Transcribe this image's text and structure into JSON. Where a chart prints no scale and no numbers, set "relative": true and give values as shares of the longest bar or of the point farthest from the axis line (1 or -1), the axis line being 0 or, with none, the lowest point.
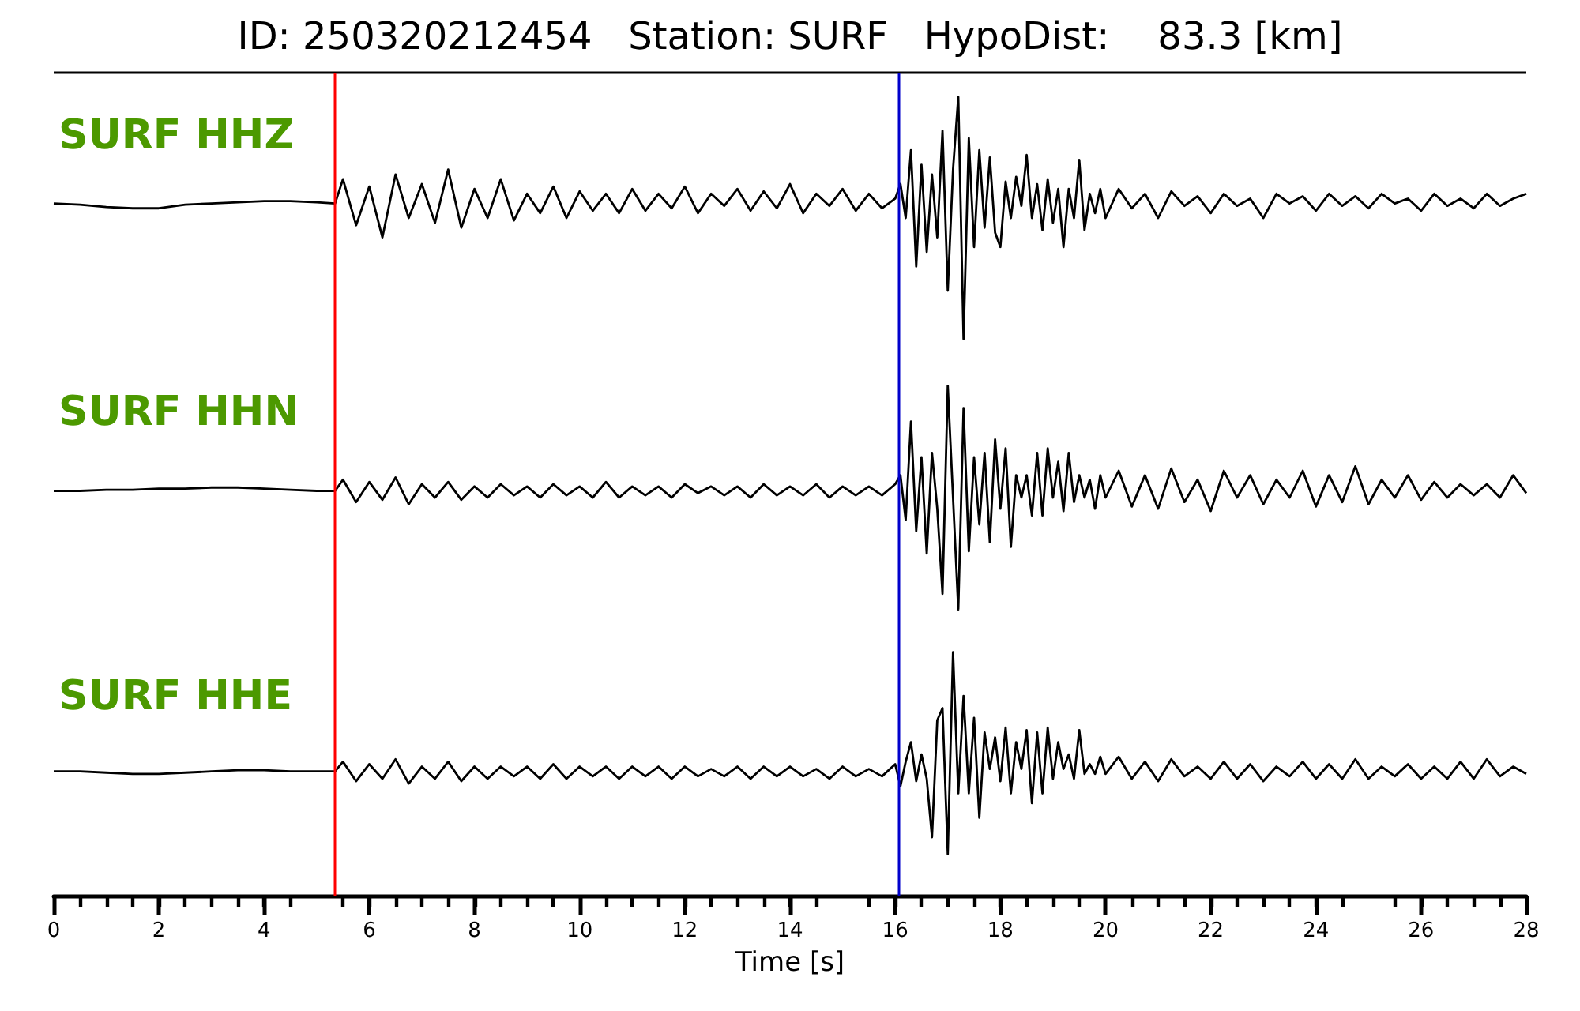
{
  "chart_data": [
    {
      "type": "line",
      "title": "ID: 250320212454   Station: SURF   HypoDist:    83.3 [km]",
      "annotations": [
        "SURF HHZ"
      ],
      "relative": true,
      "tick_labels": false,
      "grid": false,
      "marker": "none",
      "line_style": "solid",
      "xlim": [
        0,
        28
      ],
      "ref_lines": [
        {
          "axis": "x",
          "value": 5.35,
          "color": "#ff0000"
        },
        {
          "axis": "x",
          "value": 16.07,
          "color": "#0000cc"
        }
      ],
      "series": [
        {
          "color": "#000000",
          "x": [
            0,
            0.5,
            1,
            1.5,
            2,
            2.5,
            3,
            3.5,
            4,
            4.5,
            5,
            5.35,
            5.5,
            5.75,
            6,
            6.25,
            6.5,
            6.75,
            7,
            7.25,
            7.5,
            7.75,
            8,
            8.25,
            8.5,
            8.75,
            9,
            9.25,
            9.5,
            9.75,
            10,
            10.25,
            10.5,
            10.75,
            11,
            11.25,
            11.5,
            11.75,
            12,
            12.25,
            12.5,
            12.75,
            13,
            13.25,
            13.5,
            13.75,
            14,
            14.25,
            14.5,
            14.75,
            15,
            15.25,
            15.5,
            15.75,
            16,
            16.1,
            16.2,
            16.3,
            16.4,
            16.5,
            16.6,
            16.7,
            16.8,
            16.9,
            17,
            17.1,
            17.2,
            17.3,
            17.4,
            17.5,
            17.6,
            17.7,
            17.8,
            17.9,
            18,
            18.1,
            18.2,
            18.3,
            18.4,
            18.5,
            18.6,
            18.7,
            18.8,
            18.9,
            19,
            19.1,
            19.2,
            19.3,
            19.4,
            19.5,
            19.6,
            19.7,
            19.8,
            19.9,
            20,
            20.25,
            20.5,
            20.75,
            21,
            21.25,
            21.5,
            21.75,
            22,
            22.25,
            22.5,
            22.75,
            23,
            23.25,
            23.5,
            23.75,
            24,
            24.25,
            24.5,
            24.75,
            25,
            25.25,
            25.5,
            25.75,
            26,
            26.25,
            26.5,
            26.75,
            27,
            27.25,
            27.5,
            27.75,
            28
          ],
          "values": [
            0.56,
            0.555,
            0.545,
            0.54,
            0.54,
            0.555,
            0.56,
            0.565,
            0.57,
            0.57,
            0.565,
            0.56,
            0.66,
            0.47,
            0.63,
            0.42,
            0.68,
            0.5,
            0.64,
            0.48,
            0.7,
            0.46,
            0.62,
            0.5,
            0.66,
            0.49,
            0.6,
            0.52,
            0.63,
            0.5,
            0.61,
            0.53,
            0.6,
            0.52,
            0.62,
            0.53,
            0.6,
            0.54,
            0.63,
            0.52,
            0.6,
            0.55,
            0.62,
            0.53,
            0.61,
            0.54,
            0.64,
            0.52,
            0.6,
            0.55,
            0.62,
            0.53,
            0.6,
            0.54,
            0.58,
            0.64,
            0.5,
            0.78,
            0.3,
            0.72,
            0.36,
            0.68,
            0.42,
            0.86,
            0.2,
            0.7,
            1,
            0,
            0.83,
            0.38,
            0.78,
            0.46,
            0.75,
            0.44,
            0.38,
            0.65,
            0.5,
            0.67,
            0.55,
            0.76,
            0.5,
            0.64,
            0.45,
            0.66,
            0.48,
            0.62,
            0.38,
            0.62,
            0.5,
            0.74,
            0.45,
            0.6,
            0.52,
            0.62,
            0.5,
            0.62,
            0.54,
            0.6,
            0.5,
            0.61,
            0.55,
            0.59,
            0.52,
            0.6,
            0.55,
            0.58,
            0.5,
            0.6,
            0.56,
            0.59,
            0.53,
            0.6,
            0.55,
            0.59,
            0.54,
            0.6,
            0.56,
            0.58,
            0.53,
            0.6,
            0.55,
            0.58,
            0.54,
            0.6,
            0.55,
            0.58,
            0.6
          ]
        }
      ]
    },
    {
      "type": "line",
      "annotations": [
        "SURF HHN"
      ],
      "relative": true,
      "tick_labels": false,
      "grid": false,
      "marker": "none",
      "line_style": "solid",
      "xlim": [
        0,
        28
      ],
      "ref_lines": [
        {
          "axis": "x",
          "value": 5.35,
          "color": "#ff0000"
        },
        {
          "axis": "x",
          "value": 16.07,
          "color": "#0000cc"
        }
      ],
      "series": [
        {
          "color": "#000000",
          "x": [
            0,
            0.5,
            1,
            1.5,
            2,
            2.5,
            3,
            3.5,
            4,
            4.5,
            5,
            5.35,
            5.5,
            5.75,
            6,
            6.25,
            6.5,
            6.75,
            7,
            7.25,
            7.5,
            7.75,
            8,
            8.25,
            8.5,
            8.75,
            9,
            9.25,
            9.5,
            9.75,
            10,
            10.25,
            10.5,
            10.75,
            11,
            11.25,
            11.5,
            11.75,
            12,
            12.25,
            12.5,
            12.75,
            13,
            13.25,
            13.5,
            13.75,
            14,
            14.25,
            14.5,
            14.75,
            15,
            15.25,
            15.5,
            15.75,
            16,
            16.1,
            16.2,
            16.3,
            16.4,
            16.5,
            16.6,
            16.7,
            16.8,
            16.9,
            17,
            17.1,
            17.2,
            17.3,
            17.4,
            17.5,
            17.6,
            17.7,
            17.8,
            17.9,
            18,
            18.1,
            18.2,
            18.3,
            18.4,
            18.5,
            18.6,
            18.7,
            18.8,
            18.9,
            19,
            19.1,
            19.2,
            19.3,
            19.4,
            19.5,
            19.6,
            19.7,
            19.8,
            19.9,
            20,
            20.25,
            20.5,
            20.75,
            21,
            21.25,
            21.5,
            21.75,
            22,
            22.25,
            22.5,
            22.75,
            23,
            23.25,
            23.5,
            23.75,
            24,
            24.25,
            24.5,
            24.75,
            25,
            25.25,
            25.5,
            25.75,
            26,
            26.25,
            26.5,
            26.75,
            27,
            27.25,
            27.5,
            27.75,
            28
          ],
          "values": [
            0.53,
            0.53,
            0.535,
            0.535,
            0.54,
            0.54,
            0.545,
            0.545,
            0.54,
            0.535,
            0.53,
            0.53,
            0.58,
            0.48,
            0.57,
            0.49,
            0.59,
            0.47,
            0.56,
            0.5,
            0.57,
            0.49,
            0.55,
            0.5,
            0.56,
            0.51,
            0.55,
            0.5,
            0.56,
            0.51,
            0.55,
            0.5,
            0.57,
            0.5,
            0.55,
            0.51,
            0.55,
            0.5,
            0.56,
            0.52,
            0.55,
            0.51,
            0.55,
            0.5,
            0.56,
            0.51,
            0.55,
            0.51,
            0.56,
            0.5,
            0.55,
            0.51,
            0.55,
            0.51,
            0.56,
            0.6,
            0.4,
            0.84,
            0.35,
            0.68,
            0.25,
            0.7,
            0.45,
            0.07,
            1,
            0.5,
            0,
            0.9,
            0.26,
            0.68,
            0.38,
            0.7,
            0.3,
            0.76,
            0.45,
            0.72,
            0.28,
            0.6,
            0.5,
            0.6,
            0.42,
            0.7,
            0.42,
            0.72,
            0.5,
            0.66,
            0.44,
            0.7,
            0.48,
            0.6,
            0.5,
            0.58,
            0.45,
            0.6,
            0.5,
            0.62,
            0.46,
            0.6,
            0.45,
            0.63,
            0.48,
            0.58,
            0.44,
            0.62,
            0.5,
            0.6,
            0.47,
            0.58,
            0.5,
            0.62,
            0.46,
            0.6,
            0.48,
            0.64,
            0.47,
            0.58,
            0.5,
            0.6,
            0.49,
            0.57,
            0.5,
            0.56,
            0.51,
            0.56,
            0.5,
            0.6,
            0.52
          ]
        }
      ]
    },
    {
      "type": "line",
      "annotations": [
        "SURF HHE"
      ],
      "xlabel": "Time [s]",
      "relative": true,
      "tick_labels": "x",
      "grid": false,
      "marker": "none",
      "line_style": "solid",
      "xlim": [
        0,
        28
      ],
      "xticks": [
        0,
        2,
        4,
        6,
        8,
        10,
        12,
        14,
        16,
        18,
        20,
        22,
        24,
        26,
        28
      ],
      "ref_lines": [
        {
          "axis": "x",
          "value": 5.35,
          "color": "#ff0000"
        },
        {
          "axis": "x",
          "value": 16.07,
          "color": "#0000cc"
        }
      ],
      "series": [
        {
          "color": "#000000",
          "x": [
            0,
            0.5,
            1,
            1.5,
            2,
            2.5,
            3,
            3.5,
            4,
            4.5,
            5,
            5.35,
            5.5,
            5.75,
            6,
            6.25,
            6.5,
            6.75,
            7,
            7.25,
            7.5,
            7.75,
            8,
            8.25,
            8.5,
            8.75,
            9,
            9.25,
            9.5,
            9.75,
            10,
            10.25,
            10.5,
            10.75,
            11,
            11.25,
            11.5,
            11.75,
            12,
            12.25,
            12.5,
            12.75,
            13,
            13.25,
            13.5,
            13.75,
            14,
            14.25,
            14.5,
            14.75,
            15,
            15.25,
            15.5,
            15.75,
            16,
            16.1,
            16.2,
            16.3,
            16.4,
            16.5,
            16.6,
            16.7,
            16.8,
            16.9,
            17,
            17.1,
            17.2,
            17.3,
            17.4,
            17.5,
            17.6,
            17.7,
            17.8,
            17.9,
            18,
            18.1,
            18.2,
            18.3,
            18.4,
            18.5,
            18.6,
            18.7,
            18.8,
            18.9,
            19,
            19.1,
            19.2,
            19.3,
            19.4,
            19.5,
            19.6,
            19.7,
            19.8,
            19.9,
            20,
            20.25,
            20.5,
            20.75,
            21,
            21.25,
            21.5,
            21.75,
            22,
            22.25,
            22.5,
            22.75,
            23,
            23.25,
            23.5,
            23.75,
            24,
            24.25,
            24.5,
            24.75,
            25,
            25.25,
            25.5,
            25.75,
            26,
            26.25,
            26.5,
            26.75,
            27,
            27.25,
            27.5,
            27.75,
            28
          ],
          "values": [
            0.51,
            0.51,
            0.505,
            0.5,
            0.5,
            0.505,
            0.51,
            0.515,
            0.515,
            0.51,
            0.51,
            0.51,
            0.55,
            0.47,
            0.54,
            0.48,
            0.56,
            0.46,
            0.53,
            0.48,
            0.55,
            0.47,
            0.53,
            0.48,
            0.53,
            0.49,
            0.53,
            0.48,
            0.54,
            0.48,
            0.53,
            0.49,
            0.53,
            0.48,
            0.53,
            0.49,
            0.53,
            0.48,
            0.53,
            0.49,
            0.52,
            0.49,
            0.53,
            0.48,
            0.53,
            0.49,
            0.53,
            0.49,
            0.52,
            0.48,
            0.53,
            0.49,
            0.52,
            0.49,
            0.54,
            0.45,
            0.55,
            0.63,
            0.47,
            0.58,
            0.48,
            0.24,
            0.72,
            0.77,
            0.17,
            1,
            0.42,
            0.82,
            0.42,
            0.73,
            0.32,
            0.67,
            0.52,
            0.65,
            0.47,
            0.69,
            0.42,
            0.63,
            0.52,
            0.68,
            0.38,
            0.67,
            0.42,
            0.69,
            0.48,
            0.63,
            0.52,
            0.58,
            0.48,
            0.68,
            0.5,
            0.54,
            0.5,
            0.57,
            0.5,
            0.57,
            0.48,
            0.55,
            0.47,
            0.56,
            0.49,
            0.53,
            0.48,
            0.55,
            0.48,
            0.54,
            0.47,
            0.53,
            0.49,
            0.55,
            0.48,
            0.54,
            0.48,
            0.56,
            0.48,
            0.53,
            0.49,
            0.54,
            0.48,
            0.53,
            0.48,
            0.55,
            0.48,
            0.56,
            0.49,
            0.53,
            0.5
          ]
        }
      ]
    }
  ]
}
